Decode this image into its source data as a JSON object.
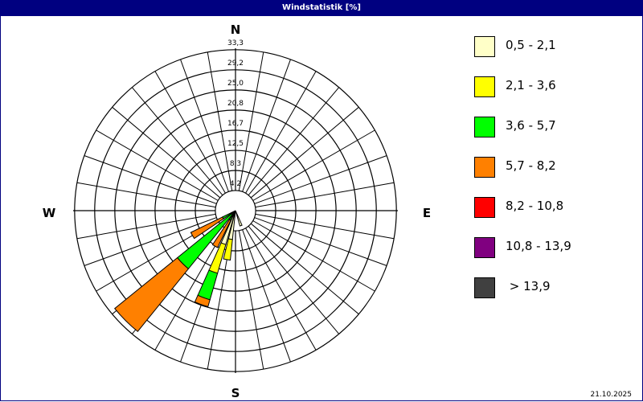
{
  "title": "Windstatistik [%]",
  "date": "21.10.2025",
  "chart_data": {
    "type": "wind-rose",
    "title": "Windstatistik [%]",
    "unit": "%",
    "compass_labels": {
      "N": "N",
      "E": "E",
      "S": "S",
      "W": "W"
    },
    "radial_max": 33.3,
    "ring_labels": [
      "4,2",
      "8,3",
      "12,5",
      "16,7",
      "20,8",
      "25,0",
      "29,2",
      "33,3"
    ],
    "ring_values": [
      4.17,
      8.33,
      12.5,
      16.67,
      20.83,
      25.0,
      29.17,
      33.33
    ],
    "direction_step_deg": 10,
    "speed_classes": [
      {
        "label": "0,5 - 2,1",
        "color": "#ffffc8"
      },
      {
        "label": "2,1 - 3,6",
        "color": "#ffff00"
      },
      {
        "label": "3,6 - 5,7",
        "color": "#00ff00"
      },
      {
        "label": "5,7 - 8,2",
        "color": "#ff8000"
      },
      {
        "label": "8,2 - 10,8",
        "color": "#ff0000"
      },
      {
        "label": "10,8 - 13,9",
        "color": "#800080"
      },
      {
        "label": " > 13,9",
        "color": "#404040"
      }
    ],
    "bars": [
      {
        "direction_deg": 160,
        "cumulative": [
          3.3,
          3.3,
          3.3,
          3.3,
          3.3,
          3.3,
          3.3
        ]
      },
      {
        "direction_deg": 190,
        "cumulative": [
          6.0,
          10.3,
          10.3,
          10.3,
          10.3,
          10.3,
          10.3
        ]
      },
      {
        "direction_deg": 200,
        "cumulative": [
          7.3,
          13.5,
          19.2,
          20.7,
          20.7,
          20.7,
          20.7
        ]
      },
      {
        "direction_deg": 210,
        "cumulative": [
          1.0,
          1.5,
          2.2,
          8.5,
          8.5,
          8.5,
          8.5
        ]
      },
      {
        "direction_deg": 225,
        "cumulative": [
          0.5,
          1.0,
          15.5,
          32.2,
          32.2,
          32.2,
          32.2
        ]
      },
      {
        "direction_deg": 240,
        "cumulative": [
          0.5,
          1.0,
          3.0,
          10.3,
          10.3,
          10.3,
          10.3
        ]
      }
    ],
    "legend_position": "right"
  }
}
